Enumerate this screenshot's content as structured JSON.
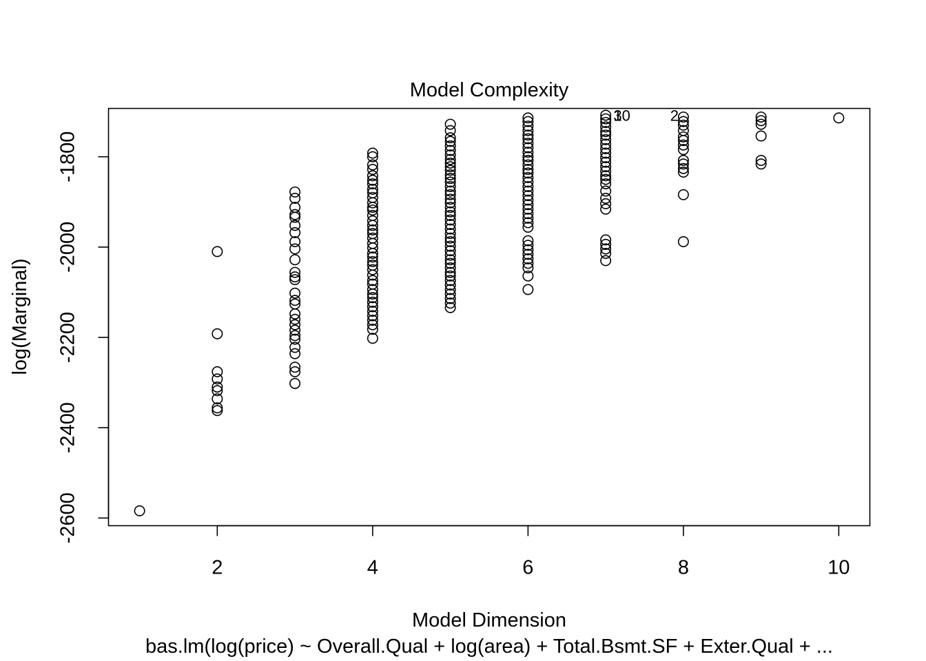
{
  "chart_data": {
    "type": "scatter",
    "title": "Model Complexity",
    "xlabel": "Model Dimension",
    "ylabel": "log(Marginal)",
    "subtitle": "bas.lm(log(price) ~ Overall.Qual + log(area) + Total.Bsmt.SF + Exter.Qual + ...",
    "xlim": [
      0.6,
      10.4
    ],
    "ylim": [
      -2617,
      -1693
    ],
    "xticks": [
      2,
      4,
      6,
      8,
      10
    ],
    "yticks": [
      -2600,
      -2400,
      -2200,
      -2000,
      -1800
    ],
    "grid": false,
    "point_style": "open-circle",
    "series": [
      {
        "points": [
          [
            1,
            -2584
          ],
          [
            2,
            -2010
          ],
          [
            2,
            -2192
          ],
          [
            2,
            -2276
          ],
          [
            2,
            -2292
          ],
          [
            2,
            -2310
          ],
          [
            2,
            -2318
          ],
          [
            2,
            -2336
          ],
          [
            2,
            -2356
          ],
          [
            2,
            -2362
          ],
          [
            3,
            -1878
          ],
          [
            3,
            -1892
          ],
          [
            3,
            -1912
          ],
          [
            3,
            -1928
          ],
          [
            3,
            -1934
          ],
          [
            3,
            -1952
          ],
          [
            3,
            -1968
          ],
          [
            3,
            -1988
          ],
          [
            3,
            -2004
          ],
          [
            3,
            -2028
          ],
          [
            3,
            -2056
          ],
          [
            3,
            -2066
          ],
          [
            3,
            -2072
          ],
          [
            3,
            -2102
          ],
          [
            3,
            -2118
          ],
          [
            3,
            -2126
          ],
          [
            3,
            -2148
          ],
          [
            3,
            -2160
          ],
          [
            3,
            -2172
          ],
          [
            3,
            -2184
          ],
          [
            3,
            -2196
          ],
          [
            3,
            -2204
          ],
          [
            3,
            -2222
          ],
          [
            3,
            -2236
          ],
          [
            3,
            -2266
          ],
          [
            3,
            -2276
          ],
          [
            3,
            -2302
          ],
          [
            4,
            -1792
          ],
          [
            4,
            -1800
          ],
          [
            4,
            -1818
          ],
          [
            4,
            -1828
          ],
          [
            4,
            -1842
          ],
          [
            4,
            -1852
          ],
          [
            4,
            -1860
          ],
          [
            4,
            -1872
          ],
          [
            4,
            -1880
          ],
          [
            4,
            -1890
          ],
          [
            4,
            -1902
          ],
          [
            4,
            -1912
          ],
          [
            4,
            -1918
          ],
          [
            4,
            -1930
          ],
          [
            4,
            -1942
          ],
          [
            4,
            -1952
          ],
          [
            4,
            -1962
          ],
          [
            4,
            -1970
          ],
          [
            4,
            -1980
          ],
          [
            4,
            -1992
          ],
          [
            4,
            -2002
          ],
          [
            4,
            -2014
          ],
          [
            4,
            -2022
          ],
          [
            4,
            -2032
          ],
          [
            4,
            -2040
          ],
          [
            4,
            -2050
          ],
          [
            4,
            -2062
          ],
          [
            4,
            -2074
          ],
          [
            4,
            -2082
          ],
          [
            4,
            -2094
          ],
          [
            4,
            -2104
          ],
          [
            4,
            -2112
          ],
          [
            4,
            -2122
          ],
          [
            4,
            -2132
          ],
          [
            4,
            -2142
          ],
          [
            4,
            -2152
          ],
          [
            4,
            -2162
          ],
          [
            4,
            -2172
          ],
          [
            4,
            -2182
          ],
          [
            4,
            -2202
          ],
          [
            5,
            -1728
          ],
          [
            5,
            -1742
          ],
          [
            5,
            -1758
          ],
          [
            5,
            -1766
          ],
          [
            5,
            -1776
          ],
          [
            5,
            -1786
          ],
          [
            5,
            -1796
          ],
          [
            5,
            -1806
          ],
          [
            5,
            -1814
          ],
          [
            5,
            -1822
          ],
          [
            5,
            -1830
          ],
          [
            5,
            -1840
          ],
          [
            5,
            -1848
          ],
          [
            5,
            -1856
          ],
          [
            5,
            -1866
          ],
          [
            5,
            -1876
          ],
          [
            5,
            -1884
          ],
          [
            5,
            -1894
          ],
          [
            5,
            -1902
          ],
          [
            5,
            -1912
          ],
          [
            5,
            -1922
          ],
          [
            5,
            -1930
          ],
          [
            5,
            -1940
          ],
          [
            5,
            -1950
          ],
          [
            5,
            -1960
          ],
          [
            5,
            -1970
          ],
          [
            5,
            -1980
          ],
          [
            5,
            -1988
          ],
          [
            5,
            -1998
          ],
          [
            5,
            -2008
          ],
          [
            5,
            -2018
          ],
          [
            5,
            -2028
          ],
          [
            5,
            -2036
          ],
          [
            5,
            -2046
          ],
          [
            5,
            -2056
          ],
          [
            5,
            -2064
          ],
          [
            5,
            -2074
          ],
          [
            5,
            -2084
          ],
          [
            5,
            -2094
          ],
          [
            5,
            -2104
          ],
          [
            5,
            -2114
          ],
          [
            5,
            -2124
          ],
          [
            5,
            -2134
          ],
          [
            6,
            -1714
          ],
          [
            6,
            -1722
          ],
          [
            6,
            -1732
          ],
          [
            6,
            -1742
          ],
          [
            6,
            -1752
          ],
          [
            6,
            -1760
          ],
          [
            6,
            -1770
          ],
          [
            6,
            -1780
          ],
          [
            6,
            -1790
          ],
          [
            6,
            -1800
          ],
          [
            6,
            -1808
          ],
          [
            6,
            -1818
          ],
          [
            6,
            -1828
          ],
          [
            6,
            -1836
          ],
          [
            6,
            -1846
          ],
          [
            6,
            -1856
          ],
          [
            6,
            -1866
          ],
          [
            6,
            -1876
          ],
          [
            6,
            -1886
          ],
          [
            6,
            -1896
          ],
          [
            6,
            -1906
          ],
          [
            6,
            -1916
          ],
          [
            6,
            -1926
          ],
          [
            6,
            -1936
          ],
          [
            6,
            -1946
          ],
          [
            6,
            -1956
          ],
          [
            6,
            -1986
          ],
          [
            6,
            -1996
          ],
          [
            6,
            -2006
          ],
          [
            6,
            -2016
          ],
          [
            6,
            -2026
          ],
          [
            6,
            -2036
          ],
          [
            6,
            -2046
          ],
          [
            6,
            -2064
          ],
          [
            6,
            -2094
          ],
          [
            7,
            -1708
          ],
          [
            7,
            -1716
          ],
          [
            7,
            -1724
          ],
          [
            7,
            -1734
          ],
          [
            7,
            -1744
          ],
          [
            7,
            -1752
          ],
          [
            7,
            -1762
          ],
          [
            7,
            -1772
          ],
          [
            7,
            -1782
          ],
          [
            7,
            -1792
          ],
          [
            7,
            -1802
          ],
          [
            7,
            -1812
          ],
          [
            7,
            -1822
          ],
          [
            7,
            -1832
          ],
          [
            7,
            -1842
          ],
          [
            7,
            -1850
          ],
          [
            7,
            -1860
          ],
          [
            7,
            -1876
          ],
          [
            7,
            -1892
          ],
          [
            7,
            -1904
          ],
          [
            7,
            -1916
          ],
          [
            7,
            -1984
          ],
          [
            7,
            -1994
          ],
          [
            7,
            -2004
          ],
          [
            7,
            -2014
          ],
          [
            7,
            -2030
          ],
          [
            8,
            -1712
          ],
          [
            8,
            -1722
          ],
          [
            8,
            -1730
          ],
          [
            8,
            -1742
          ],
          [
            8,
            -1756
          ],
          [
            8,
            -1764
          ],
          [
            8,
            -1774
          ],
          [
            8,
            -1784
          ],
          [
            8,
            -1808
          ],
          [
            8,
            -1816
          ],
          [
            8,
            -1826
          ],
          [
            8,
            -1834
          ],
          [
            8,
            -1884
          ],
          [
            8,
            -1988
          ],
          [
            9,
            -1712
          ],
          [
            9,
            -1720
          ],
          [
            9,
            -1728
          ],
          [
            9,
            -1754
          ],
          [
            9,
            -1808
          ],
          [
            9,
            -1816
          ],
          [
            10,
            -1714
          ]
        ]
      }
    ],
    "annotations": [
      {
        "text": "10",
        "x": 7.1,
        "y": -1708
      },
      {
        "text": "3",
        "x": 7.1,
        "y": -1708
      },
      {
        "text": "2",
        "x": 7.83,
        "y": -1708
      }
    ]
  }
}
